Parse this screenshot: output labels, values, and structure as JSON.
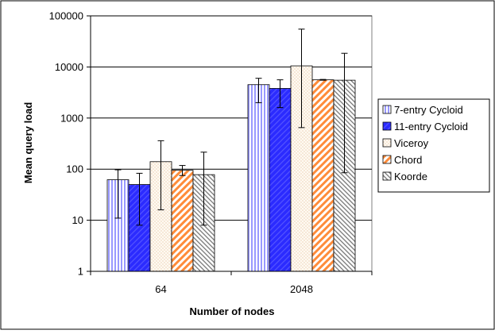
{
  "chart_data": {
    "type": "bar",
    "title": "",
    "xlabel": "Number of nodes",
    "ylabel": "Mean query load",
    "y_scale": "log",
    "ylim": [
      1,
      100000
    ],
    "y_ticks": [
      1,
      10,
      100,
      1000,
      10000,
      100000
    ],
    "y_tick_labels": [
      "1",
      "10",
      "100",
      "1000",
      "10000",
      "100000"
    ],
    "grid": "horizontal major gridlines",
    "legend_position": "right",
    "categories": [
      "64",
      "2048"
    ],
    "series": [
      {
        "name": "7-entry Cycloid",
        "pattern": "vertical-lines",
        "color": "#9999ff",
        "values": [
          62,
          4500
        ],
        "error_low": [
          11,
          2000
        ],
        "error_high": [
          97,
          6000
        ]
      },
      {
        "name": "11-entry Cycloid",
        "pattern": "solid-hatched",
        "color": "#3333ff",
        "values": [
          50,
          3800
        ],
        "error_low": [
          8,
          1600
        ],
        "error_high": [
          83,
          5600
        ]
      },
      {
        "name": "Viceroy",
        "pattern": "dots",
        "color": "#fff4e6",
        "values": [
          140,
          10500
        ],
        "error_low": [
          16,
          650
        ],
        "error_high": [
          360,
          55000
        ]
      },
      {
        "name": "Chord",
        "pattern": "diagonal-orange",
        "color": "#ff8c3a",
        "values": [
          95,
          5600
        ],
        "error_low": [
          75,
          5500
        ],
        "error_high": [
          118,
          5700
        ]
      },
      {
        "name": "Koorde",
        "pattern": "diagonal-gray",
        "color": "#888888",
        "values": [
          78,
          5500
        ],
        "error_low": [
          8,
          85
        ],
        "error_high": [
          215,
          18500
        ]
      }
    ]
  }
}
